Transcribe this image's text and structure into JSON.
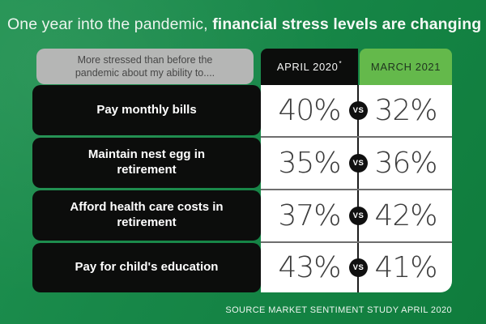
{
  "title": {
    "regular": "One year into the pandemic,",
    "bold": "financial stress levels are changing"
  },
  "table": {
    "header": {
      "description": "More stressed than before the pandemic about my ability to....",
      "col_april": "APRIL 2020",
      "col_april_note": "*",
      "col_march": "MARCH 2021"
    },
    "vs_label": "vs",
    "rows": [
      {
        "label": "Pay monthly bills",
        "april": "40%",
        "march": "32%"
      },
      {
        "label": "Maintain nest egg in retirement",
        "april": "35%",
        "march": "36%"
      },
      {
        "label": "Afford health care costs in retirement",
        "april": "37%",
        "march": "42%"
      },
      {
        "label": "Pay for child's education",
        "april": "43%",
        "march": "41%"
      }
    ]
  },
  "source": "SOURCE MARKET SENTIMENT STUDY APRIL 2020",
  "colors": {
    "background_green_light": "#1f9150",
    "background_green_dark": "#0f7c3c",
    "march_header_green": "#64b94b",
    "row_label_black": "#0c0d0c",
    "header_gray": "#b5b6b5",
    "panel_white": "#ffffff",
    "value_text": "#3c3c3c"
  },
  "chart_data": {
    "type": "table",
    "title": "One year into the pandemic, financial stress levels are changing",
    "subtitle": "More stressed than before the pandemic about my ability to....",
    "categories": [
      "Pay monthly bills",
      "Maintain nest egg in retirement",
      "Afford health care costs in retirement",
      "Pay for child's education"
    ],
    "series": [
      {
        "name": "APRIL 2020",
        "unit": "%",
        "values": [
          40,
          35,
          37,
          43
        ]
      },
      {
        "name": "MARCH 2021",
        "unit": "%",
        "values": [
          32,
          36,
          42,
          41
        ]
      }
    ],
    "source": "SOURCE MARKET SENTIMENT STUDY APRIL 2020"
  }
}
